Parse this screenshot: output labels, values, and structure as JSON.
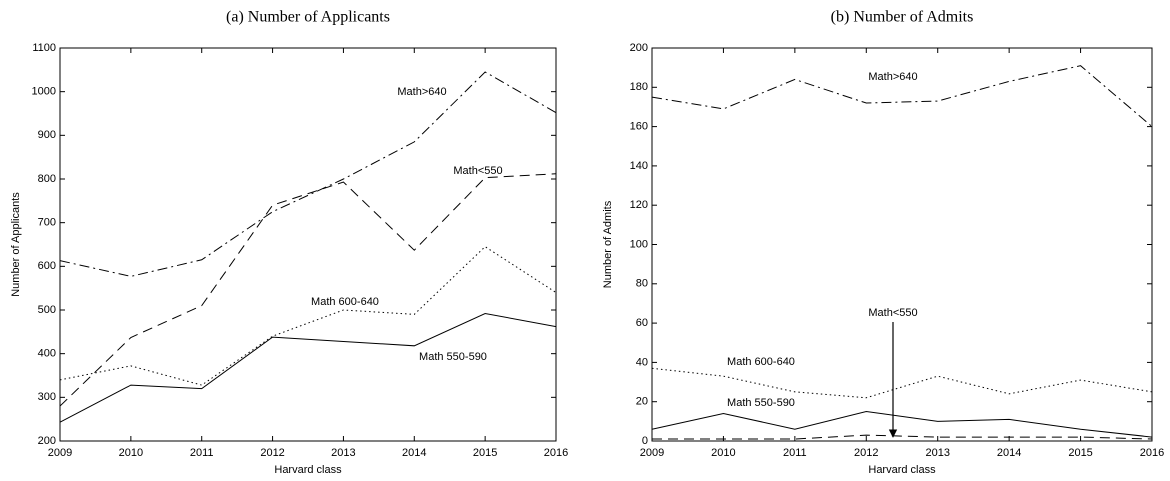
{
  "chart_data": [
    {
      "type": "line",
      "title": "(a) Number of Applicants",
      "x_label": "Harvard class",
      "y_label": "Number of Applicants",
      "x": [
        2009,
        2010,
        2011,
        2012,
        2013,
        2014,
        2015,
        2016
      ],
      "xlim": [
        2009,
        2016
      ],
      "xticks": [
        2009,
        2010,
        2011,
        2012,
        2013,
        2014,
        2015,
        2016
      ],
      "ylim": [
        200,
        1100
      ],
      "yticks": [
        200,
        300,
        400,
        500,
        600,
        700,
        800,
        900,
        1000,
        1100
      ],
      "series": [
        {
          "name": "Math>640",
          "color": "#000000",
          "line_style": "dashdot",
          "values": [
            613,
            577,
            615,
            725,
            800,
            885,
            1045,
            952
          ]
        },
        {
          "name": "Math<550",
          "color": "#000000",
          "line_style": "dashed",
          "values": [
            280,
            437,
            510,
            740,
            793,
            637,
            803,
            812
          ]
        },
        {
          "name": "Math 600-640",
          "color": "#000000",
          "line_style": "dotted",
          "values": [
            340,
            372,
            328,
            440,
            500,
            490,
            645,
            540
          ]
        },
        {
          "name": "Math 550-590",
          "color": "#000000",
          "line_style": "solid",
          "values": [
            243,
            328,
            320,
            438,
            428,
            418,
            492,
            462
          ]
        }
      ]
    },
    {
      "type": "line",
      "title": "(b) Number of Admits",
      "x_label": "Harvard class",
      "y_label": "Number of Admits",
      "x": [
        2009,
        2010,
        2011,
        2012,
        2013,
        2014,
        2015,
        2016
      ],
      "xlim": [
        2009,
        2016
      ],
      "xticks": [
        2009,
        2010,
        2011,
        2012,
        2013,
        2014,
        2015,
        2016
      ],
      "ylim": [
        0,
        200
      ],
      "yticks": [
        0,
        20,
        40,
        60,
        80,
        100,
        120,
        140,
        160,
        180,
        200
      ],
      "series": [
        {
          "name": "Math>640",
          "color": "#000000",
          "line_style": "dashdot",
          "values": [
            175,
            169,
            184,
            172,
            173,
            183,
            191,
            160
          ]
        },
        {
          "name": "Math<550",
          "color": "#000000",
          "line_style": "dashed",
          "values": [
            1,
            1,
            1,
            3,
            2,
            2,
            2,
            1
          ]
        },
        {
          "name": "Math 600-640",
          "color": "#000000",
          "line_style": "dotted",
          "values": [
            37,
            33,
            25,
            22,
            33,
            24,
            31,
            25
          ]
        },
        {
          "name": "Math 550-590",
          "color": "#000000",
          "line_style": "solid",
          "values": [
            6,
            14,
            6,
            15,
            10,
            11,
            6,
            2
          ]
        }
      ]
    }
  ]
}
